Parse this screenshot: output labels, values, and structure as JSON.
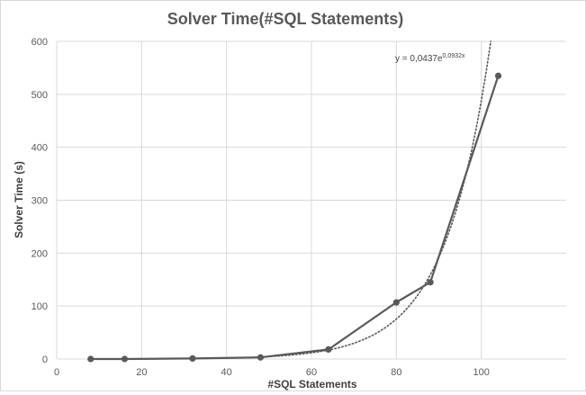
{
  "chart_data": {
    "type": "scatter",
    "title": "Solver Time(#SQL Statements)",
    "xlabel": "#SQL Statements",
    "ylabel": "Solver Time (s)",
    "xlim": [
      0,
      120
    ],
    "ylim": [
      0,
      600
    ],
    "x_ticks": [
      0,
      20,
      40,
      60,
      80,
      100
    ],
    "y_ticks": [
      0,
      100,
      200,
      300,
      400,
      500,
      600
    ],
    "grid": true,
    "legend": "none",
    "series": [
      {
        "x": [
          8,
          16,
          32,
          48,
          64,
          80,
          88,
          104
        ],
        "y": [
          0,
          0,
          1,
          3,
          18,
          107,
          145,
          535
        ],
        "color": "#595959",
        "markers": true
      }
    ],
    "trendline": {
      "kind": "exponential",
      "a": 0.0437,
      "b": 0.0932,
      "label_base": "y = 0,0437e",
      "label_exponent": "0,0932x",
      "style": "dotted",
      "color": "#595959"
    }
  }
}
